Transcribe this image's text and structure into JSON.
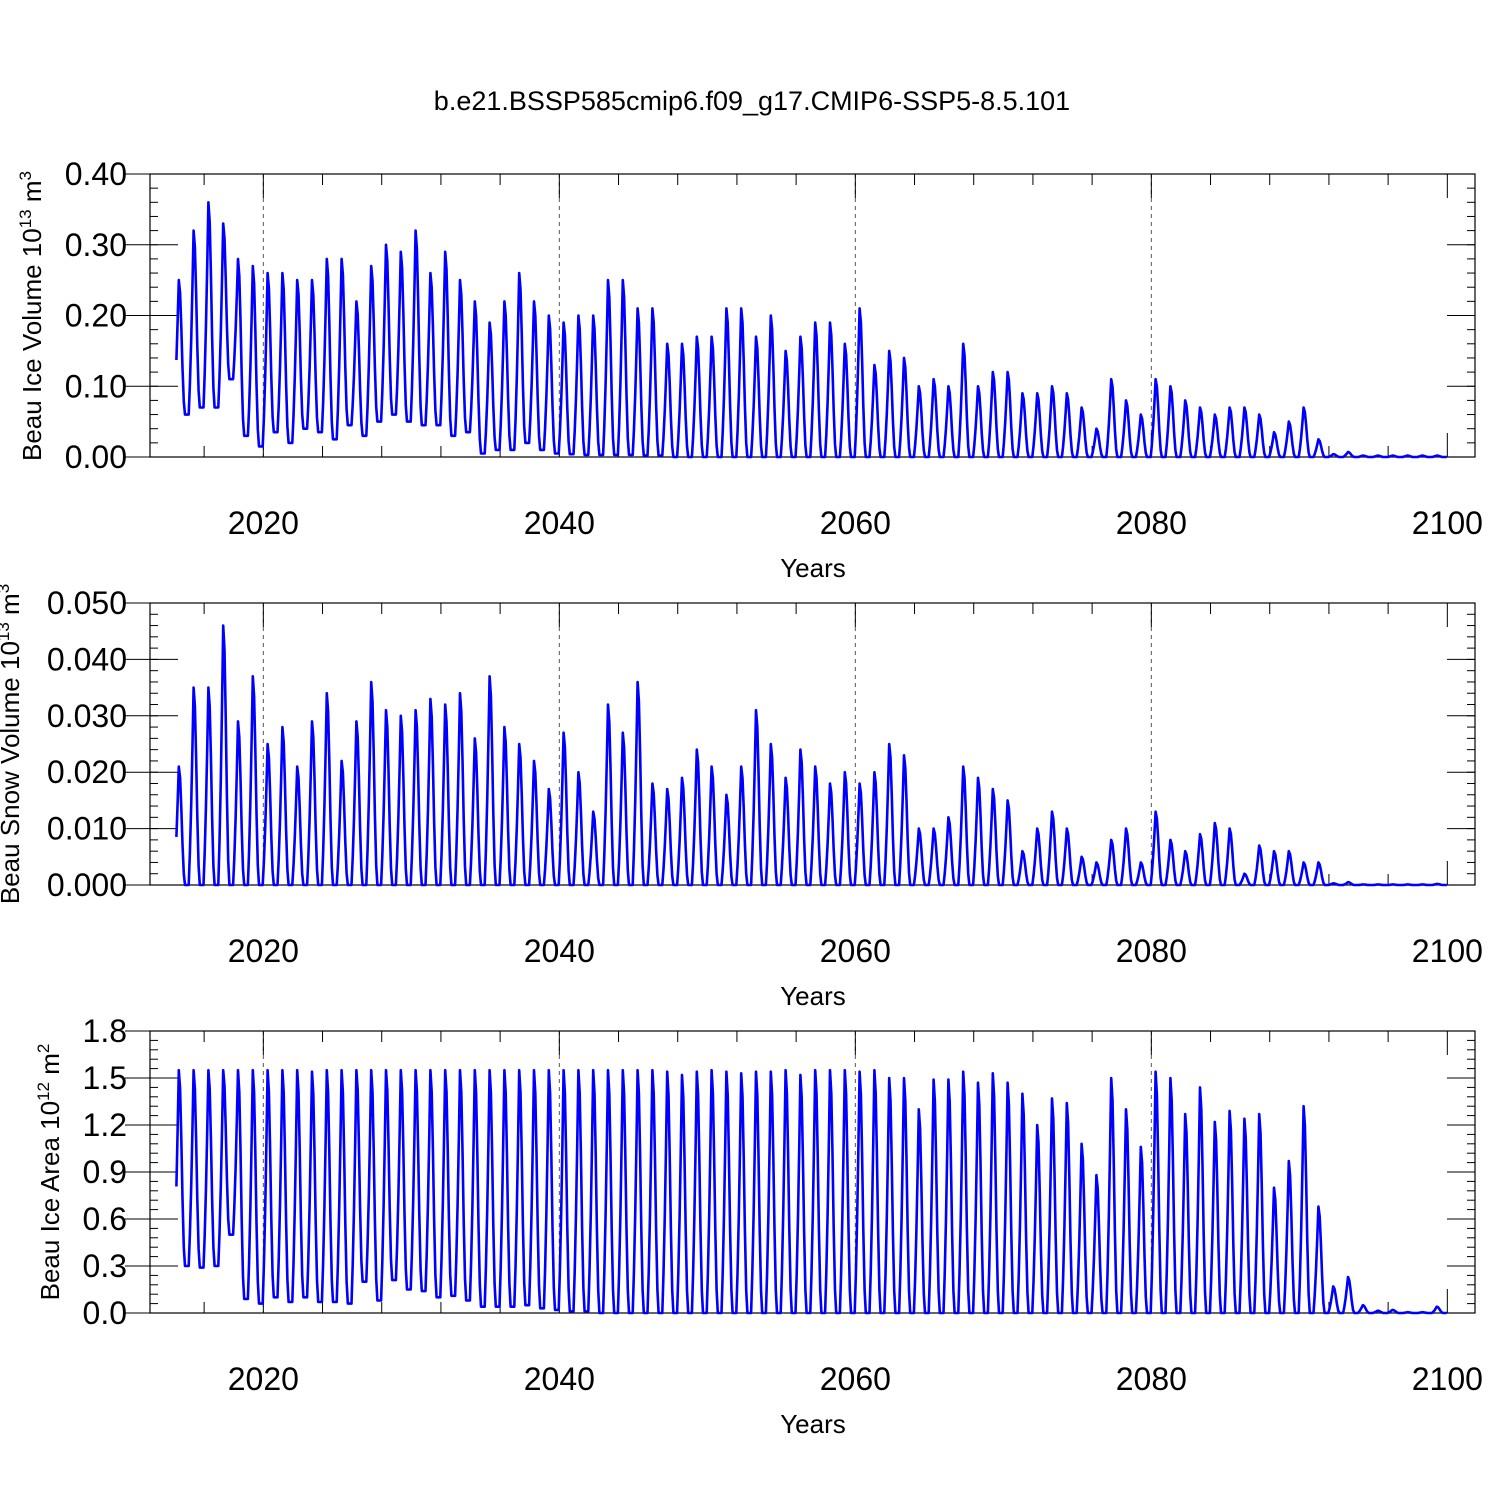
{
  "title": "b.e21.BSSP585cmip6.f09_g17.CMIP6-SSP5-8.5.101",
  "line_color": "#0000ff",
  "chart_data": [
    {
      "id": "ice-volume",
      "type": "line",
      "title": "b.e21.BSSP585cmip6.f09_g17.CMIP6-SSP5-8.5.101",
      "xlabel": "Years",
      "ylabel": {
        "text": "Beau Ice Volume 10",
        "sup1": "13",
        "mid": " m",
        "sup2": "3"
      },
      "xlim": [
        2014.1,
        2100
      ],
      "ylim": [
        0,
        0.4
      ],
      "x_ticks": [
        "2020",
        "2040",
        "2060",
        "2080",
        "2100"
      ],
      "x_tick_values": [
        2020,
        2040,
        2060,
        2080,
        2100
      ],
      "y_ticks": [
        "0.00",
        "0.10",
        "0.20",
        "0.30",
        "0.40"
      ],
      "y_tick_values": [
        0,
        0.1,
        0.2,
        0.3,
        0.4
      ],
      "y_minor_step": 0.02,
      "grid": "dashed vertical at 2020, 2040, 2060, 2080",
      "series": [
        {
          "name": "Beau Ice Volume",
          "start_year": 2014,
          "years": [
            2014,
            2015,
            2016,
            2017,
            2018,
            2019,
            2020,
            2021,
            2022,
            2023,
            2024,
            2025,
            2026,
            2027,
            2028,
            2029,
            2030,
            2031,
            2032,
            2033,
            2034,
            2035,
            2036,
            2037,
            2038,
            2039,
            2040,
            2041,
            2042,
            2043,
            2044,
            2045,
            2046,
            2047,
            2048,
            2049,
            2050,
            2051,
            2052,
            2053,
            2054,
            2055,
            2056,
            2057,
            2058,
            2059,
            2060,
            2061,
            2062,
            2063,
            2064,
            2065,
            2066,
            2067,
            2068,
            2069,
            2070,
            2071,
            2072,
            2073,
            2074,
            2075,
            2076,
            2077,
            2078,
            2079,
            2080,
            2081,
            2082,
            2083,
            2084,
            2085,
            2086,
            2087,
            2088,
            2089,
            2090,
            2091,
            2092,
            2093,
            2094,
            2095,
            2096,
            2097,
            2098,
            2099
          ],
          "annual_max": [
            0.25,
            0.32,
            0.36,
            0.33,
            0.28,
            0.27,
            0.26,
            0.26,
            0.25,
            0.25,
            0.28,
            0.28,
            0.22,
            0.27,
            0.3,
            0.29,
            0.32,
            0.26,
            0.29,
            0.25,
            0.22,
            0.19,
            0.22,
            0.26,
            0.22,
            0.2,
            0.19,
            0.2,
            0.2,
            0.25,
            0.25,
            0.21,
            0.21,
            0.16,
            0.16,
            0.17,
            0.17,
            0.21,
            0.21,
            0.17,
            0.2,
            0.15,
            0.17,
            0.19,
            0.19,
            0.16,
            0.21,
            0.13,
            0.15,
            0.14,
            0.1,
            0.11,
            0.1,
            0.16,
            0.1,
            0.12,
            0.12,
            0.09,
            0.09,
            0.1,
            0.09,
            0.07,
            0.04,
            0.11,
            0.08,
            0.06,
            0.11,
            0.1,
            0.08,
            0.07,
            0.06,
            0.07,
            0.07,
            0.06,
            0.035,
            0.05,
            0.07,
            0.025,
            0.004,
            0.007,
            0.002,
            0.002,
            0.002,
            0.002,
            0.002,
            0.002
          ],
          "annual_min": [
            0.06,
            0.07,
            0.07,
            0.11,
            0.03,
            0.015,
            0.035,
            0.02,
            0.04,
            0.035,
            0.025,
            0.045,
            0.03,
            0.05,
            0.06,
            0.05,
            0.045,
            0.045,
            0.03,
            0.035,
            0.005,
            0.01,
            0.01,
            0.02,
            0.01,
            0.005,
            0.004,
            0.003,
            0.003,
            0.003,
            0.003,
            0.002,
            0.002,
            0,
            0,
            0,
            0,
            0,
            0,
            0,
            0,
            0,
            0,
            0,
            0,
            0,
            0,
            0,
            0,
            0,
            0,
            0,
            0,
            0,
            0,
            0,
            0,
            0,
            0,
            0,
            0,
            0,
            0,
            0,
            0,
            0,
            0,
            0,
            0,
            0,
            0,
            0,
            0,
            0,
            0,
            0,
            0,
            0,
            0,
            0,
            0,
            0,
            0,
            0,
            0,
            0
          ]
        }
      ]
    },
    {
      "id": "snow-volume",
      "type": "line",
      "xlabel": "Years",
      "ylabel": {
        "text": "Beau Snow Volume 10",
        "sup1": "13",
        "mid": " m",
        "sup2": "3"
      },
      "xlim": [
        2014.1,
        2100
      ],
      "ylim": [
        0,
        0.05
      ],
      "x_ticks": [
        "2020",
        "2040",
        "2060",
        "2080",
        "2100"
      ],
      "x_tick_values": [
        2020,
        2040,
        2060,
        2080,
        2100
      ],
      "y_ticks": [
        "0.000",
        "0.010",
        "0.020",
        "0.030",
        "0.040",
        "0.050"
      ],
      "y_tick_values": [
        0,
        0.01,
        0.02,
        0.03,
        0.04,
        0.05
      ],
      "y_minor_step": 0.002,
      "grid": "dashed vertical at 2020, 2040, 2060, 2080",
      "series": [
        {
          "name": "Beau Snow Volume",
          "start_year": 2014,
          "annual_max": [
            0.021,
            0.035,
            0.035,
            0.046,
            0.029,
            0.037,
            0.025,
            0.028,
            0.021,
            0.029,
            0.034,
            0.022,
            0.029,
            0.036,
            0.031,
            0.03,
            0.031,
            0.033,
            0.032,
            0.034,
            0.026,
            0.037,
            0.028,
            0.025,
            0.022,
            0.017,
            0.027,
            0.02,
            0.013,
            0.032,
            0.027,
            0.036,
            0.018,
            0.017,
            0.019,
            0.024,
            0.021,
            0.016,
            0.021,
            0.031,
            0.025,
            0.019,
            0.024,
            0.021,
            0.018,
            0.02,
            0.018,
            0.02,
            0.025,
            0.023,
            0.01,
            0.01,
            0.012,
            0.021,
            0.019,
            0.017,
            0.015,
            0.006,
            0.01,
            0.013,
            0.01,
            0.005,
            0.004,
            0.008,
            0.01,
            0.004,
            0.013,
            0.008,
            0.006,
            0.009,
            0.011,
            0.01,
            0.002,
            0.007,
            0.006,
            0.006,
            0.004,
            0.004,
            0.0003,
            0.0005,
            0.0001,
            0.0001,
            0.0001,
            0.0001,
            0.0001,
            0.0002
          ],
          "annual_min": [
            0,
            0,
            0,
            0,
            0,
            0,
            0,
            0,
            0,
            0,
            0,
            0,
            0,
            0,
            0,
            0,
            0,
            0,
            0,
            0,
            0,
            0,
            0,
            0,
            0,
            0,
            0,
            0,
            0,
            0,
            0,
            0,
            0,
            0,
            0,
            0,
            0,
            0,
            0,
            0,
            0,
            0,
            0,
            0,
            0,
            0,
            0,
            0,
            0,
            0,
            0,
            0,
            0,
            0,
            0,
            0,
            0,
            0,
            0,
            0,
            0,
            0,
            0,
            0,
            0,
            0,
            0,
            0,
            0,
            0,
            0,
            0,
            0,
            0,
            0,
            0,
            0,
            0,
            0,
            0,
            0,
            0,
            0,
            0,
            0,
            0
          ]
        }
      ]
    },
    {
      "id": "ice-area",
      "type": "line",
      "xlabel": "Years",
      "ylabel": {
        "text": "Beau Ice Area 10",
        "sup1": "12",
        "mid": " m",
        "sup2": "2"
      },
      "xlim": [
        2014.1,
        2100
      ],
      "ylim": [
        0,
        1.8
      ],
      "x_ticks": [
        "2020",
        "2040",
        "2060",
        "2080",
        "2100"
      ],
      "x_tick_values": [
        2020,
        2040,
        2060,
        2080,
        2100
      ],
      "y_ticks": [
        "0.0",
        "0.3",
        "0.6",
        "0.9",
        "1.2",
        "1.5",
        "1.8"
      ],
      "y_tick_values": [
        0,
        0.3,
        0.6,
        0.9,
        1.2,
        1.5,
        1.8
      ],
      "y_minor_step": 0.06,
      "grid": "dashed vertical at 2020, 2040, 2060, 2080",
      "series": [
        {
          "name": "Beau Ice Area",
          "start_year": 2014,
          "annual_max": [
            1.55,
            1.55,
            1.55,
            1.55,
            1.55,
            1.55,
            1.55,
            1.55,
            1.55,
            1.54,
            1.55,
            1.55,
            1.55,
            1.55,
            1.55,
            1.55,
            1.55,
            1.55,
            1.55,
            1.55,
            1.55,
            1.55,
            1.55,
            1.55,
            1.55,
            1.55,
            1.55,
            1.55,
            1.55,
            1.55,
            1.55,
            1.55,
            1.55,
            1.54,
            1.52,
            1.54,
            1.55,
            1.54,
            1.53,
            1.54,
            1.54,
            1.55,
            1.52,
            1.55,
            1.55,
            1.55,
            1.54,
            1.55,
            1.5,
            1.5,
            1.3,
            1.49,
            1.49,
            1.54,
            1.47,
            1.53,
            1.47,
            1.4,
            1.2,
            1.37,
            1.34,
            1.08,
            0.88,
            1.5,
            1.3,
            1.06,
            1.54,
            1.5,
            1.27,
            1.44,
            1.22,
            1.29,
            1.24,
            1.27,
            0.8,
            0.97,
            1.32,
            0.68,
            0.17,
            0.23,
            0.05,
            0.015,
            0.02,
            0.005,
            0.005,
            0.04
          ],
          "annual_min": [
            0.3,
            0.29,
            0.3,
            0.5,
            0.09,
            0.06,
            0.1,
            0.07,
            0.1,
            0.07,
            0.07,
            0.06,
            0.2,
            0.08,
            0.21,
            0.15,
            0.14,
            0.1,
            0.11,
            0.08,
            0.04,
            0.04,
            0.04,
            0.05,
            0.03,
            0.02,
            0.01,
            0.01,
            0,
            0,
            0,
            0,
            0,
            0,
            0,
            0,
            0,
            0,
            0,
            0,
            0,
            0,
            0,
            0,
            0,
            0,
            0,
            0,
            0,
            0,
            0,
            0,
            0,
            0,
            0,
            0,
            0,
            0,
            0,
            0,
            0,
            0,
            0,
            0,
            0,
            0,
            0,
            0,
            0,
            0,
            0,
            0,
            0,
            0,
            0,
            0,
            0,
            0,
            0,
            0,
            0,
            0,
            0,
            0,
            0,
            0
          ]
        }
      ]
    }
  ]
}
